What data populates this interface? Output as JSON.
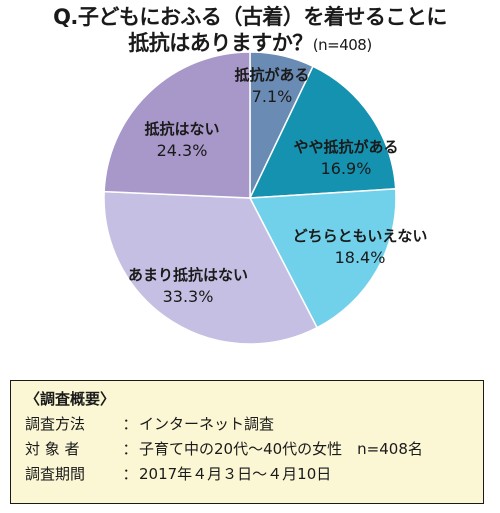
{
  "title": {
    "line1": "Q.子どもにおふる（古着）を着せることに",
    "line2": "抵抗はありますか？",
    "n": "(n=408)"
  },
  "chart_data": {
    "type": "pie",
    "start_angle_deg": 0,
    "direction": "clockwise",
    "slices": [
      {
        "label": "抵抗がある",
        "value": 7.1,
        "value_label": "7.1%",
        "color": "#6a8bb4"
      },
      {
        "label": "やや抵抗がある",
        "value": 16.9,
        "value_label": "16.9%",
        "color": "#1492b0"
      },
      {
        "label": "どちらともいえない",
        "value": 18.4,
        "value_label": "18.4%",
        "color": "#72d1ea"
      },
      {
        "label": "あまり抵抗はない",
        "value": 33.3,
        "value_label": "33.3%",
        "color": "#c5c0e3"
      },
      {
        "label": "抵抗はない",
        "value": 24.3,
        "value_label": "24.3%",
        "color": "#a898ca"
      }
    ]
  },
  "survey": {
    "heading": "〈調査概要〉",
    "rows": [
      {
        "key": "調査方法",
        "value": "インターネット調査"
      },
      {
        "key": "対 象 者",
        "value": "子育て中の20代〜40代の女性　n=408名"
      },
      {
        "key": "調査期間",
        "value": "2017年４月３日〜４月10日"
      }
    ],
    "separator": "：",
    "box_color": "#fbf7d5"
  }
}
